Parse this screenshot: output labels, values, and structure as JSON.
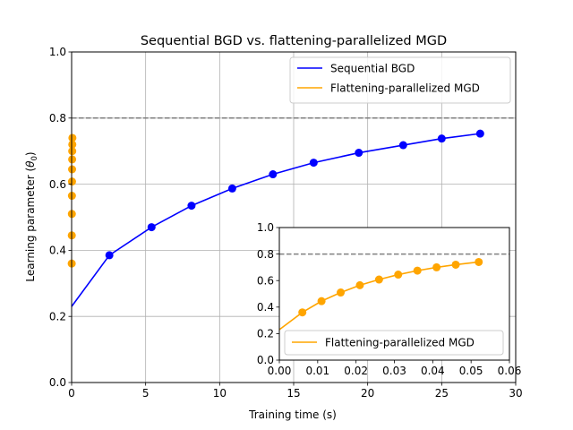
{
  "chart_data": [
    {
      "type": "line",
      "title": "Sequential BGD vs. flattening-parallelized MGD",
      "xlabel": "Training time (s)",
      "ylabel_prefix": "Learning parameter (",
      "ylabel_symbol": "θ",
      "ylabel_sub": "0",
      "ylabel_suffix": ")",
      "xlim": [
        0,
        30
      ],
      "ylim": [
        0,
        1.0
      ],
      "xticks": [
        0,
        5,
        10,
        15,
        20,
        25,
        30
      ],
      "yticks": [
        0.0,
        0.2,
        0.4,
        0.6,
        0.8,
        1.0
      ],
      "xtick_labels": [
        "0",
        "5",
        "10",
        "15",
        "20",
        "25",
        "30"
      ],
      "ytick_labels": [
        "0.0",
        "0.2",
        "0.4",
        "0.6",
        "0.8",
        "1.0"
      ],
      "grid": true,
      "reference_line": {
        "y": 0.8,
        "style": "dashed",
        "color": "#808080"
      },
      "legend_position": "top-right",
      "series": [
        {
          "name": "Sequential BGD",
          "color": "#0000ff",
          "line": {
            "x": [
              0,
              2.55,
              5.4,
              8.1,
              10.85,
              13.6,
              16.35,
              19.4,
              22.4,
              25.0,
              27.6
            ],
            "y": [
              0.23,
              0.385,
              0.47,
              0.535,
              0.587,
              0.63,
              0.665,
              0.695,
              0.718,
              0.738,
              0.753
            ]
          },
          "markers": {
            "x": [
              2.55,
              5.4,
              8.1,
              10.85,
              13.6,
              16.35,
              19.4,
              22.4,
              25.0,
              27.6
            ],
            "y": [
              0.385,
              0.47,
              0.535,
              0.587,
              0.63,
              0.665,
              0.695,
              0.718,
              0.738,
              0.753
            ]
          }
        },
        {
          "name": "Flattening-parallelized MGD",
          "color": "#ffa500",
          "markers": {
            "x": [
              0.006,
              0.011,
              0.016,
              0.021,
              0.026,
              0.031,
              0.036,
              0.041,
              0.046,
              0.052
            ],
            "y": [
              0.36,
              0.445,
              0.51,
              0.565,
              0.608,
              0.645,
              0.675,
              0.7,
              0.72,
              0.74
            ]
          }
        }
      ]
    },
    {
      "type": "line",
      "role": "inset",
      "xlim": [
        0,
        0.06
      ],
      "ylim": [
        0,
        1.0
      ],
      "xticks": [
        0,
        0.01,
        0.02,
        0.03,
        0.04,
        0.05,
        0.06
      ],
      "yticks": [
        0.0,
        0.2,
        0.4,
        0.6,
        0.8,
        1.0
      ],
      "xtick_labels": [
        "0.00",
        "0.01",
        "0.02",
        "0.03",
        "0.04",
        "0.05",
        "0.06"
      ],
      "ytick_labels": [
        "0.0",
        "0.2",
        "0.4",
        "0.6",
        "0.8",
        "1.0"
      ],
      "grid": false,
      "reference_line": {
        "y": 0.8,
        "style": "dashed",
        "color": "#808080"
      },
      "legend_position": "bottom-left",
      "series": [
        {
          "name": "Flattening-parallelized MGD",
          "color": "#ffa500",
          "line": {
            "x": [
              0,
              0.006,
              0.011,
              0.016,
              0.021,
              0.026,
              0.031,
              0.036,
              0.041,
              0.046,
              0.052
            ],
            "y": [
              0.23,
              0.36,
              0.445,
              0.51,
              0.565,
              0.608,
              0.645,
              0.675,
              0.7,
              0.72,
              0.74
            ]
          },
          "markers": {
            "x": [
              0.006,
              0.011,
              0.016,
              0.021,
              0.026,
              0.031,
              0.036,
              0.041,
              0.046,
              0.052
            ],
            "y": [
              0.36,
              0.445,
              0.51,
              0.565,
              0.608,
              0.645,
              0.675,
              0.7,
              0.72,
              0.74
            ]
          }
        }
      ]
    }
  ]
}
